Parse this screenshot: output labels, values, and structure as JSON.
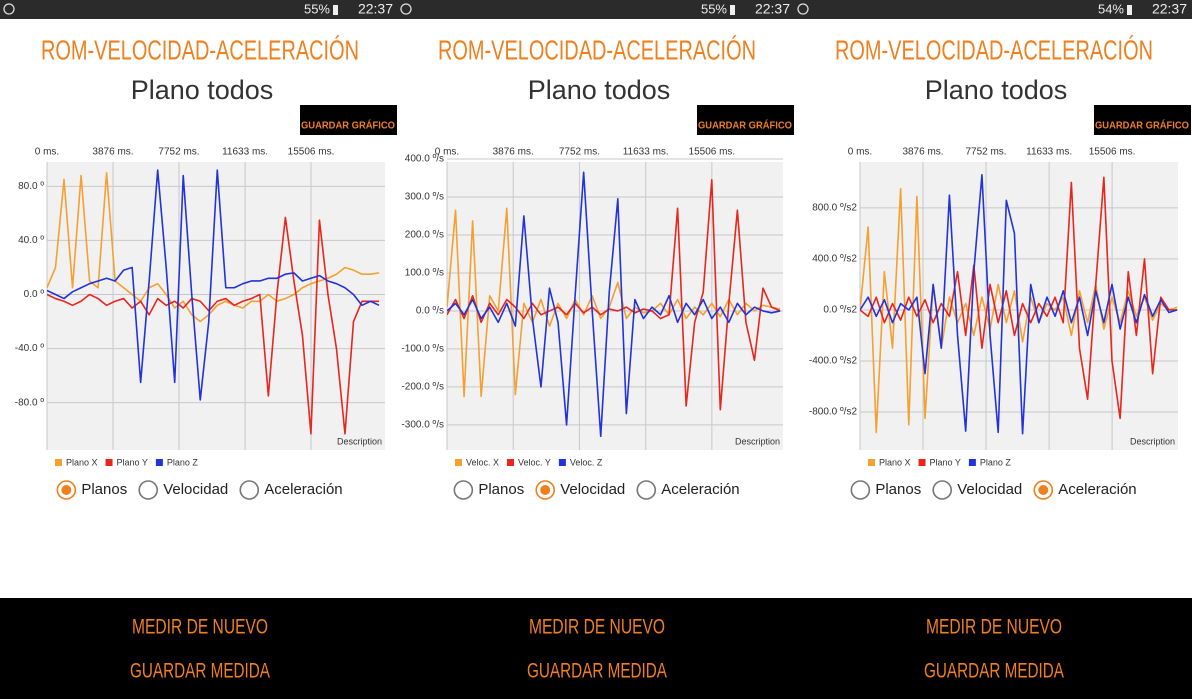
{
  "screens": [
    {
      "status_bar": {
        "battery": "55%",
        "time": "22:37"
      },
      "title": "ROM-VELOCIDAD-ACELERACIÓN",
      "subtitle": "Plano todos",
      "save_chart_button": "GUARDAR GRÁFICO",
      "chart_data": {
        "type": "line",
        "description": "Description",
        "x": [
          0,
          500,
          1000,
          1500,
          2000,
          2500,
          3000,
          3500,
          4000,
          4500,
          5000,
          5500,
          6000,
          6500,
          7000,
          7500,
          8000,
          8500,
          9000,
          9500,
          10000,
          10500,
          11000,
          11500,
          12000,
          12500,
          13000,
          13500,
          14000,
          14500,
          15000,
          15500,
          16000,
          16500,
          17000,
          17500,
          18000,
          18500,
          19000,
          19500
        ],
        "xlim": [
          0,
          19850
        ],
        "xticks": [
          {
            "value": 0,
            "label": "0 ms."
          },
          {
            "value": 3876,
            "label": "3876 ms."
          },
          {
            "value": 7752,
            "label": "7752 ms."
          },
          {
            "value": 11633,
            "label": "11633 ms."
          },
          {
            "value": 15506,
            "label": "15506 ms."
          }
        ],
        "ylim": [
          -115,
          98
        ],
        "yticks": [
          {
            "value": -80,
            "label": "-80.0 º"
          },
          {
            "value": -40,
            "label": "-40.0 º"
          },
          {
            "value": 0,
            "label": "0.0 º"
          },
          {
            "value": 40,
            "label": "40.0 º"
          },
          {
            "value": 80,
            "label": "80.0 º"
          }
        ],
        "grid": true,
        "series": [
          {
            "name": "Plano X",
            "color": "#f5a030",
            "values": [
              5,
              20,
              85,
              5,
              88,
              10,
              5,
              90,
              10,
              5,
              0,
              -5,
              5,
              8,
              0,
              -10,
              -5,
              -15,
              -20,
              -15,
              -8,
              -5,
              -8,
              -10,
              -5,
              -5,
              0,
              -5,
              -3,
              0,
              5,
              8,
              10,
              12,
              15,
              20,
              18,
              15,
              15,
              16
            ]
          },
          {
            "name": "Plano Y",
            "color": "#e8261e",
            "values": [
              0,
              -3,
              -5,
              -8,
              -5,
              0,
              -3,
              -8,
              -5,
              -3,
              -10,
              -5,
              -15,
              -3,
              -8,
              -5,
              -10,
              -3,
              -5,
              -12,
              -5,
              -3,
              -8,
              -5,
              -3,
              0,
              -75,
              0,
              57,
              10,
              -30,
              -103,
              55,
              0,
              -40,
              -103,
              -20,
              -5,
              -5,
              -5
            ]
          },
          {
            "name": "Plano Z",
            "color": "#2233dd",
            "values": [
              3,
              0,
              -3,
              2,
              5,
              8,
              10,
              12,
              10,
              18,
              20,
              -65,
              10,
              92,
              20,
              -65,
              88,
              0,
              -78,
              -20,
              92,
              5,
              5,
              8,
              10,
              10,
              12,
              12,
              15,
              16,
              10,
              12,
              14,
              10,
              8,
              5,
              0,
              -8,
              -5,
              -8
            ]
          }
        ]
      },
      "radio": {
        "options": [
          "Planos",
          "Velocidad",
          "Aceleración"
        ],
        "selected": 0
      },
      "buttons": [
        "MEDIR DE NUEVO",
        "GUARDAR MEDIDA"
      ]
    },
    {
      "status_bar": {
        "battery": "55%",
        "time": "22:37"
      },
      "title": "ROM-VELOCIDAD-ACELERACIÓN",
      "subtitle": "Plano todos",
      "save_chart_button": "GUARDAR GRÁFICO",
      "chart_data": {
        "type": "line",
        "description": "Description",
        "x": [
          0,
          500,
          1000,
          1500,
          2000,
          2500,
          3000,
          3500,
          4000,
          4500,
          5000,
          5500,
          6000,
          6500,
          7000,
          7500,
          8000,
          8500,
          9000,
          9500,
          10000,
          10500,
          11000,
          11500,
          12000,
          12500,
          13000,
          13500,
          14000,
          14500,
          15000,
          15500,
          16000,
          16500,
          17000,
          17500,
          18000,
          18500,
          19000,
          19500
        ],
        "xlim": [
          0,
          19670
        ],
        "xticks": [
          {
            "value": 0,
            "label": "0 ms."
          },
          {
            "value": 3876,
            "label": "3876 ms."
          },
          {
            "value": 7752,
            "label": "7752 ms."
          },
          {
            "value": 11633,
            "label": "11633 ms."
          },
          {
            "value": 15506,
            "label": "15506 ms."
          }
        ],
        "ylim": [
          -366,
          392
        ],
        "yticks": [
          {
            "value": -300,
            "label": "-300.0 º/s"
          },
          {
            "value": -200,
            "label": "-200.0 º/s"
          },
          {
            "value": -100,
            "label": "-100.0 º/s"
          },
          {
            "value": 0,
            "label": "0.0 º/s"
          },
          {
            "value": 100,
            "label": "100.0 º/s"
          },
          {
            "value": 200,
            "label": "200.0 º/s"
          },
          {
            "value": 300,
            "label": "300.0 º/s"
          },
          {
            "value": 400,
            "label": "400.0 º/s"
          }
        ],
        "grid": true,
        "series": [
          {
            "name": "Veloc. X",
            "color": "#f5a030",
            "values": [
              10,
              265,
              -225,
              237,
              -225,
              40,
              0,
              270,
              -220,
              20,
              -30,
              30,
              -40,
              20,
              -20,
              30,
              -10,
              40,
              -20,
              10,
              75,
              -20,
              10,
              -5,
              0,
              20,
              -10,
              30,
              -20,
              10,
              -10,
              20,
              -15,
              30,
              -10,
              20,
              0,
              15,
              10,
              5
            ]
          },
          {
            "name": "Veloc. Y",
            "color": "#e8261e",
            "values": [
              -10,
              30,
              -20,
              40,
              -30,
              20,
              -10,
              30,
              10,
              -20,
              20,
              -10,
              0,
              10,
              -10,
              20,
              -5,
              10,
              -10,
              5,
              0,
              10,
              -5,
              5,
              0,
              -20,
              -10,
              270,
              -250,
              -30,
              50,
              345,
              -260,
              20,
              265,
              -30,
              -130,
              60,
              10,
              0
            ]
          },
          {
            "name": "Veloc. Z",
            "color": "#2233dd",
            "values": [
              0,
              20,
              -10,
              30,
              -20,
              10,
              -30,
              20,
              -40,
              250,
              -20,
              -200,
              60,
              -30,
              -300,
              40,
              365,
              0,
              -330,
              50,
              295,
              -270,
              30,
              -20,
              10,
              -10,
              40,
              -30,
              20,
              -10,
              30,
              -20,
              10,
              -30,
              20,
              -10,
              10,
              0,
              -5,
              0
            ]
          }
        ]
      },
      "radio": {
        "options": [
          "Planos",
          "Velocidad",
          "Aceleración"
        ],
        "selected": 1
      },
      "buttons": [
        "MEDIR DE NUEVO",
        "GUARDAR MEDIDA"
      ]
    },
    {
      "status_bar": {
        "battery": "54%",
        "time": "22:37"
      },
      "title": "ROM-VELOCIDAD-ACELERACIÓN",
      "subtitle": "Plano todos",
      "save_chart_button": "GUARDAR GRÁFICO",
      "chart_data": {
        "type": "line",
        "description": "Description",
        "x": [
          0,
          500,
          1000,
          1500,
          2000,
          2500,
          3000,
          3500,
          4000,
          4500,
          5000,
          5500,
          6000,
          6500,
          7000,
          7500,
          8000,
          8500,
          9000,
          9500,
          10000,
          10500,
          11000,
          11500,
          12000,
          12500,
          13000,
          13500,
          14000,
          14500,
          15000,
          15500,
          16000,
          16500,
          17000,
          17500,
          18000,
          18500,
          19000,
          19500
        ],
        "xlim": [
          0,
          19560
        ],
        "xticks": [
          {
            "value": 0,
            "label": "0 ms."
          },
          {
            "value": 3876,
            "label": "3876 ms."
          },
          {
            "value": 7752,
            "label": "7752 ms."
          },
          {
            "value": 11633,
            "label": "11633 ms."
          },
          {
            "value": 15506,
            "label": "15506 ms."
          }
        ],
        "ylim": [
          -1098,
          1160
        ],
        "yticks": [
          {
            "value": -800,
            "label": "-800.0 º/s2"
          },
          {
            "value": -400,
            "label": "-400.0 º/s2"
          },
          {
            "value": 0,
            "label": "0.0 º/s2"
          },
          {
            "value": 400,
            "label": "400.0 º/s2"
          },
          {
            "value": 800,
            "label": "800.0 º/s2"
          }
        ],
        "grid": true,
        "series": [
          {
            "name": "Plano X",
            "color": "#f5a030",
            "values": [
              0,
              650,
              -960,
              300,
              -300,
              950,
              -900,
              890,
              -850,
              200,
              -300,
              100,
              -100,
              50,
              -200,
              100,
              -150,
              200,
              -100,
              150,
              -250,
              100,
              -100,
              50,
              0,
              100,
              -200,
              150,
              -100,
              200,
              -150,
              100,
              -100,
              150,
              -50,
              100,
              -80,
              50,
              0,
              20
            ]
          },
          {
            "name": "Plano Y",
            "color": "#e8261e",
            "values": [
              0,
              -50,
              100,
              -100,
              50,
              -80,
              100,
              -50,
              80,
              -100,
              50,
              -50,
              300,
              -200,
              350,
              -300,
              200,
              -100,
              150,
              -200,
              50,
              -100,
              50,
              -50,
              100,
              -100,
              1000,
              -300,
              -700,
              200,
              1040,
              -400,
              -850,
              300,
              -200,
              400,
              -500,
              100,
              0,
              0
            ]
          },
          {
            "name": "Plano Z",
            "color": "#2233dd",
            "values": [
              0,
              100,
              -50,
              80,
              -100,
              50,
              0,
              100,
              -500,
              200,
              -300,
              900,
              -200,
              -950,
              300,
              1060,
              -200,
              -960,
              860,
              600,
              -970,
              200,
              -100,
              100,
              -50,
              150,
              -100,
              100,
              -200,
              150,
              -100,
              200,
              -150,
              100,
              -100,
              120,
              -50,
              80,
              -20,
              0
            ]
          }
        ]
      },
      "radio": {
        "options": [
          "Planos",
          "Velocidad",
          "Aceleración"
        ],
        "selected": 2
      },
      "buttons": [
        "MEDIR DE NUEVO",
        "GUARDAR MEDIDA"
      ]
    }
  ]
}
